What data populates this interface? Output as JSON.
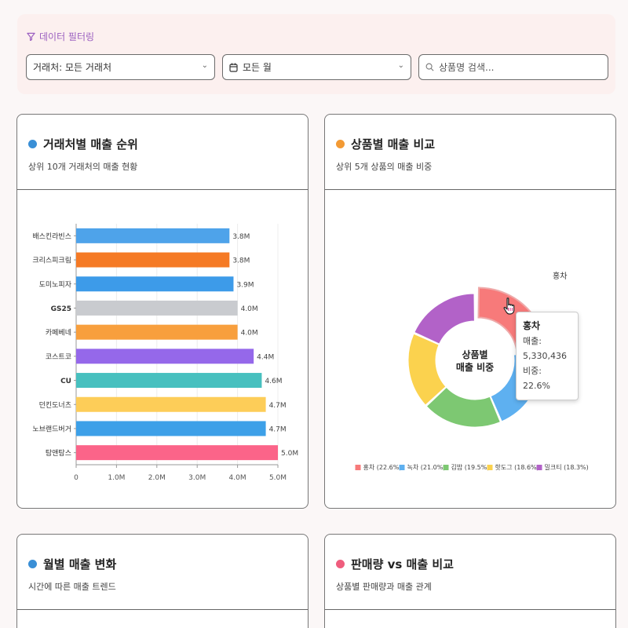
{
  "filter": {
    "title": "데이터 필터링",
    "vendor_select": "거래처:  모든 거래처",
    "month_select": "모든 월",
    "search_placeholder": "상품명 검색..."
  },
  "cards": {
    "vendor": {
      "title": "거래처별 매출 순위",
      "subtitle": "상위 10개 거래처의 매출 현황",
      "dot_color": "#3a8fd6"
    },
    "product": {
      "title": "상품별 매출 비교",
      "subtitle": "상위 5개 상품의 매출 비중",
      "dot_color": "#f39a34"
    },
    "monthly": {
      "title": "월별 매출 변화",
      "subtitle": "시간에 따른 매출 트렌드",
      "dot_color": "#3a8fd6"
    },
    "volume": {
      "title": "판매량 vs 매출 비교",
      "subtitle": "상품별 판매량과 매출 관계",
      "dot_color": "#ef5d7d"
    }
  },
  "chart_data": [
    {
      "type": "bar",
      "orientation": "horizontal",
      "categories": [
        "배스킨라빈스",
        "크리스피크림",
        "도미노피자",
        "GS25",
        "카페베네",
        "코스트코",
        "CU",
        "던킨도너츠",
        "노브랜드버거",
        "탐앤탐스"
      ],
      "values": [
        3.8,
        3.8,
        3.9,
        4.0,
        4.0,
        4.4,
        4.6,
        4.7,
        4.7,
        5.0
      ],
      "value_labels": [
        "3.8M",
        "3.8M",
        "3.9M",
        "4.0M",
        "4.0M",
        "4.4M",
        "4.6M",
        "4.7M",
        "4.7M",
        "5.0M"
      ],
      "colors": [
        "#4ea3ea",
        "#f57a25",
        "#3d9be9",
        "#c9cbcf",
        "#f89f3d",
        "#9568ea",
        "#47c0bf",
        "#fdcd58",
        "#3da0e8",
        "#fb6489"
      ],
      "xticks": [
        "0",
        "1.0M",
        "2.0M",
        "3.0M",
        "4.0M",
        "5.0M"
      ],
      "xlim": [
        0,
        5.0
      ],
      "grid": true
    },
    {
      "type": "pie",
      "variant": "donut",
      "center_label": [
        "상품별",
        "매출 비중"
      ],
      "slices": [
        {
          "label": "홍차",
          "value": 22.6,
          "color": "#f77a7a",
          "legend": "홍차 (22.6%)"
        },
        {
          "label": "녹차",
          "value": 21.0,
          "color": "#5eb0f0",
          "legend": "녹차 (21.0%)"
        },
        {
          "label": "김밥",
          "value": 19.5,
          "color": "#7dc872",
          "legend": "김밥 (19.5%)"
        },
        {
          "label": "핫도그",
          "value": 18.6,
          "color": "#fbd24e",
          "legend": "핫도그 (18.6%)"
        },
        {
          "label": "밀크티",
          "value": 18.3,
          "color": "#b262c8",
          "legend": "밀크티 (18.3%)"
        }
      ],
      "highlight_label": "홍차",
      "tooltip": {
        "title": "홍차",
        "sales": "매출: 5,330,436",
        "share": "비중: 22.6%"
      }
    }
  ]
}
